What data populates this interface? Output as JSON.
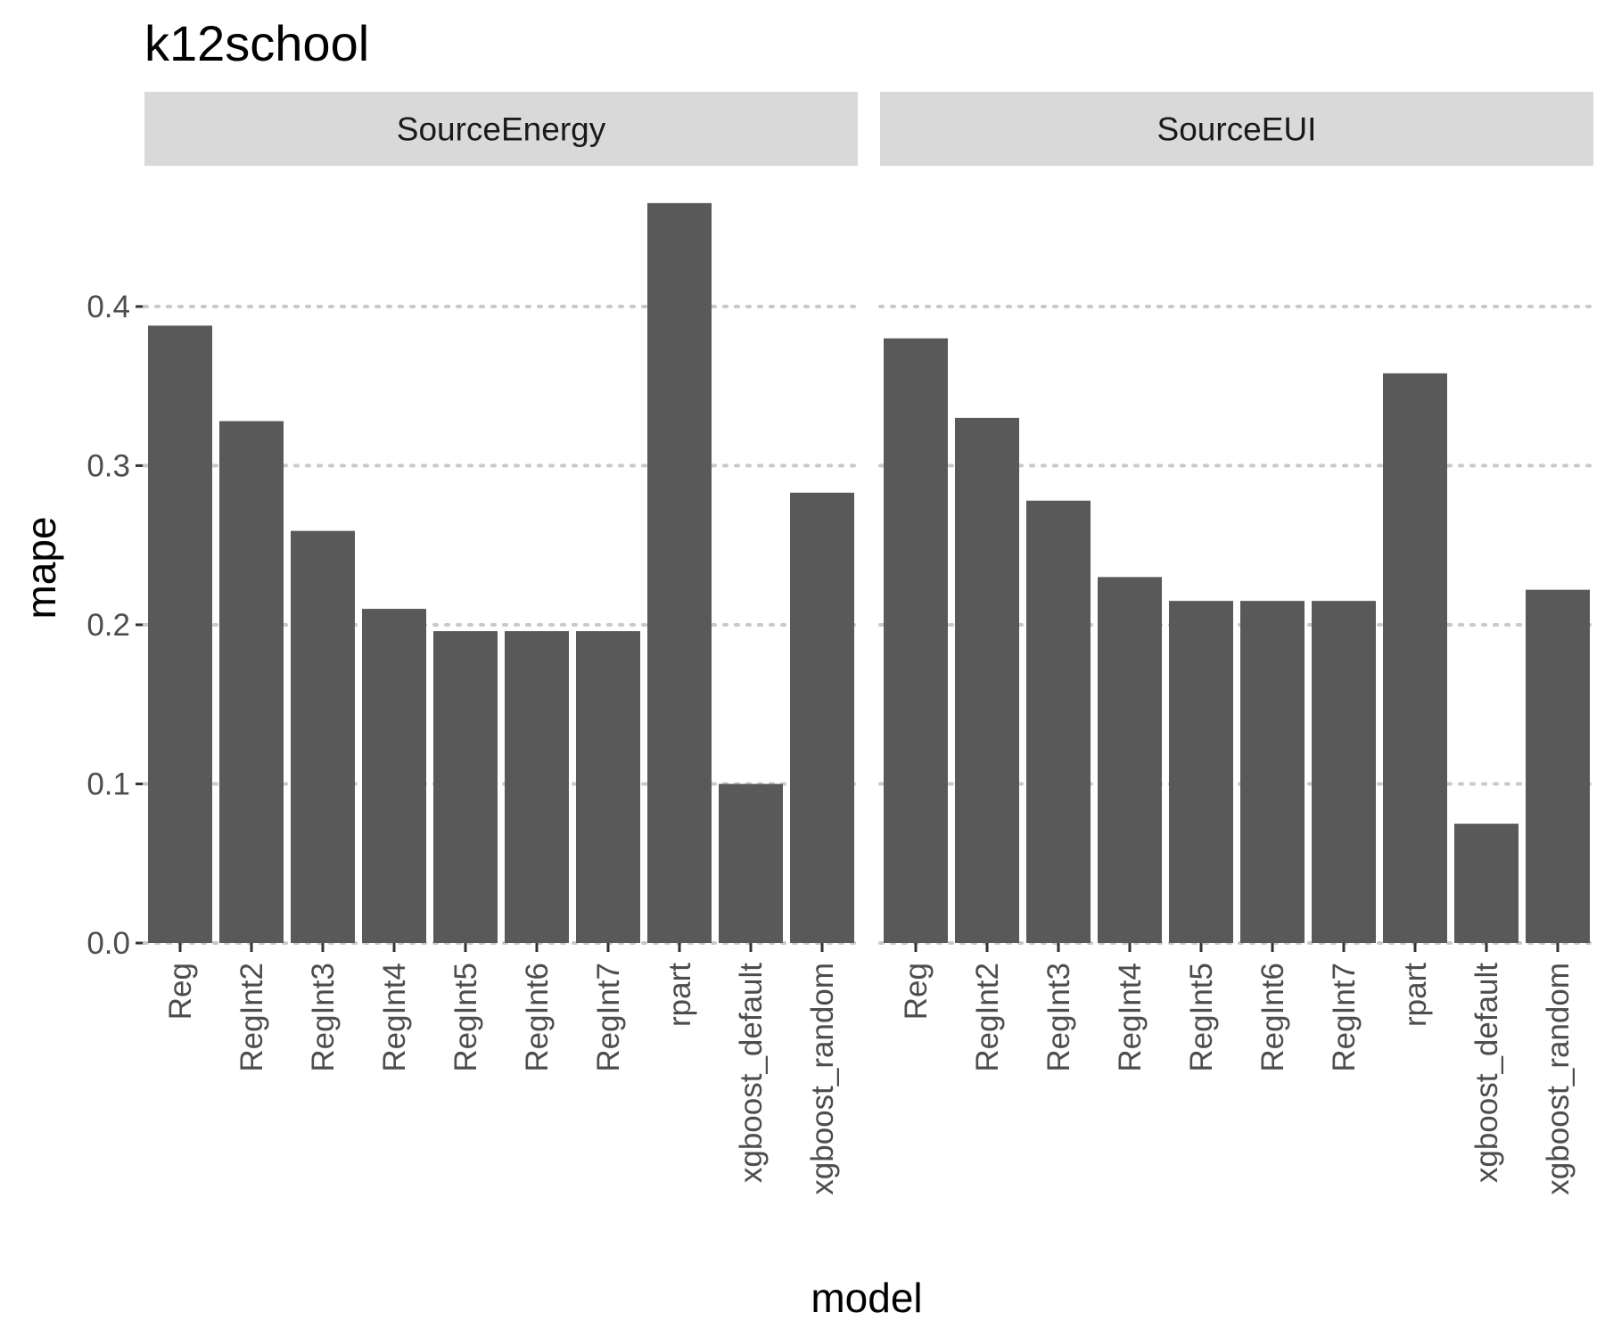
{
  "chart_data": {
    "type": "bar",
    "title": "k12school",
    "xlabel": "model",
    "ylabel": "mape",
    "ylim": [
      0,
      0.475
    ],
    "yticks": [
      "0.0",
      "0.1",
      "0.2",
      "0.3",
      "0.4"
    ],
    "ytick_values": [
      0,
      0.1,
      0.2,
      0.3,
      0.4
    ],
    "grid": "dotted-horizontal",
    "categories": [
      "Reg",
      "RegInt2",
      "RegInt3",
      "RegInt4",
      "RegInt5",
      "RegInt6",
      "RegInt7",
      "rpart",
      "xgboost_default",
      "xgboost_random"
    ],
    "bar_color": "#595959",
    "strip_color": "#d9d9d9",
    "panels": [
      {
        "name": "SourceEnergy",
        "values": [
          0.388,
          0.328,
          0.259,
          0.21,
          0.196,
          0.196,
          0.196,
          0.465,
          0.1,
          0.283
        ]
      },
      {
        "name": "SourceEUI",
        "values": [
          0.38,
          0.33,
          0.278,
          0.23,
          0.215,
          0.215,
          0.215,
          0.358,
          0.075,
          0.222
        ]
      }
    ]
  }
}
